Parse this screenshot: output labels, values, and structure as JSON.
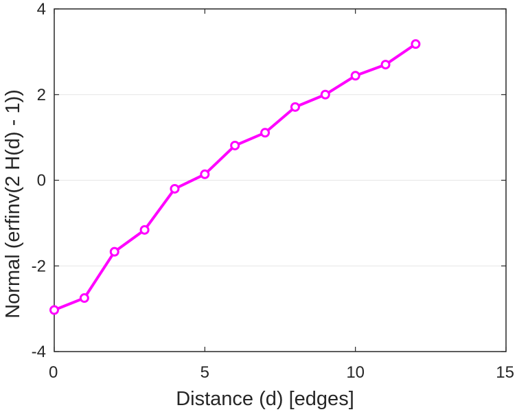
{
  "chart_data": {
    "type": "line",
    "title": "",
    "xlabel": "Distance (d) [edges]",
    "ylabel": "Normal (erfinv(2 H(d) - 1))",
    "xlim": [
      0,
      15
    ],
    "ylim": [
      -4,
      4
    ],
    "xticks": [
      0,
      5,
      10,
      15
    ],
    "yticks": [
      -4,
      -2,
      0,
      2,
      4
    ],
    "xtick_labels": [
      "0",
      "5",
      "10",
      "15"
    ],
    "ytick_labels": [
      "-4",
      "-2",
      "0",
      "2",
      "4"
    ],
    "grid": {
      "x": false,
      "y": true
    },
    "series": [
      {
        "x": [
          0,
          1,
          2,
          3,
          4,
          5,
          6,
          7,
          8,
          9,
          10,
          11,
          12
        ],
        "y": [
          -3.03,
          -2.75,
          -1.67,
          -1.16,
          -0.2,
          0.14,
          0.81,
          1.11,
          1.71,
          2.0,
          2.44,
          2.7,
          3.18
        ],
        "color": "#ff00ff",
        "marker": "circle"
      }
    ],
    "colors": {
      "axis": "#262626",
      "grid": "#e6e6e6",
      "background": "#ffffff"
    }
  }
}
